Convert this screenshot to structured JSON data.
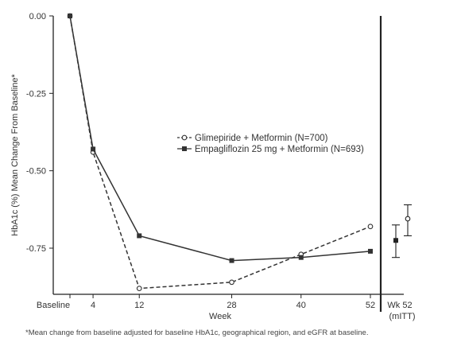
{
  "chart_data": {
    "type": "line",
    "xlabel": "Week",
    "ylabel": "HbA1c (%) Mean Change From Baseline*",
    "ylim": [
      -0.9,
      0.0
    ],
    "yticks": [
      0.0,
      -0.25,
      -0.5,
      -0.75
    ],
    "ytick_labels": [
      "0.00",
      "-0.25",
      "-0.50",
      "-0.75"
    ],
    "x": [
      0,
      4,
      12,
      28,
      40,
      52
    ],
    "xtick_labels": [
      "Baseline",
      "4",
      "12",
      "28",
      "40",
      "52"
    ],
    "xlim": [
      0,
      52
    ],
    "series": [
      {
        "name": "Glimepiride + Metformin (N=700)",
        "style": "dashed",
        "marker": "open-circle",
        "color": "#333333",
        "values": [
          0.0,
          -0.44,
          -0.88,
          -0.86,
          -0.77,
          -0.68
        ],
        "endpoint": {
          "mean": -0.655,
          "lower": -0.71,
          "upper": -0.61
        }
      },
      {
        "name": "Empagliflozin 25 mg + Metformin (N=693)",
        "style": "solid",
        "marker": "filled-square",
        "color": "#333333",
        "values": [
          0.0,
          -0.43,
          -0.71,
          -0.79,
          -0.78,
          -0.76
        ],
        "endpoint": {
          "mean": -0.725,
          "lower": -0.78,
          "upper": -0.675
        }
      }
    ],
    "endpoint_panel": {
      "label_line1": "Wk 52",
      "label_line2": "(mITT)"
    },
    "legend": "center-right"
  },
  "footnote": "*Mean change from baseline adjusted for baseline HbA1c, geographical region, and eGFR at baseline."
}
